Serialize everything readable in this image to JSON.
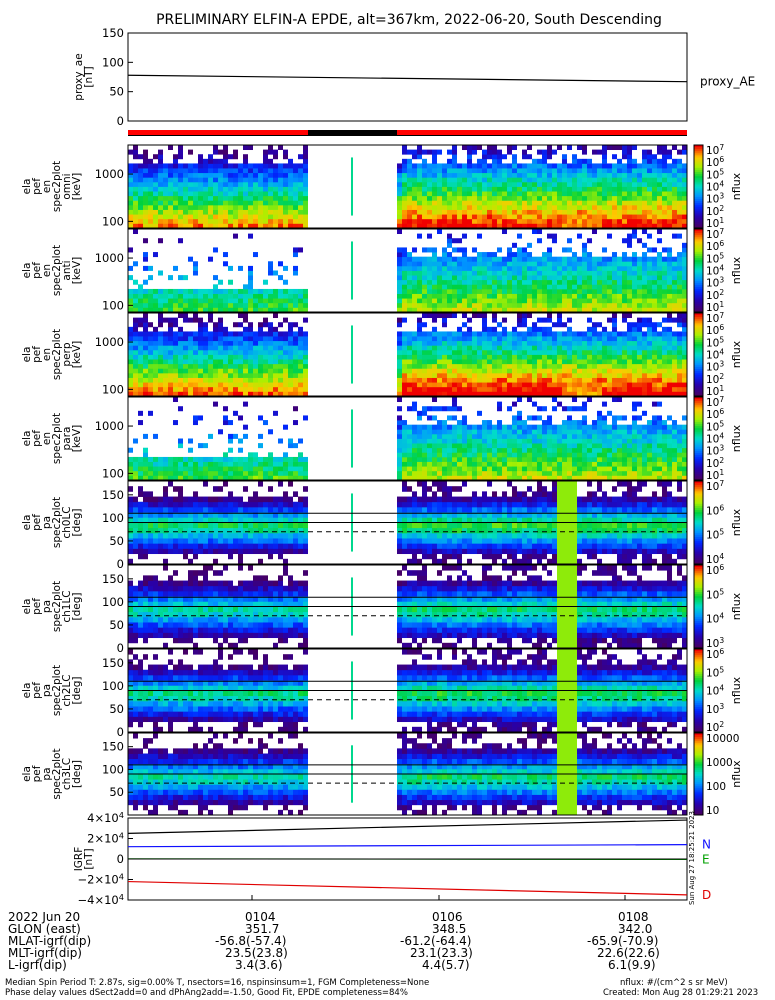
{
  "title": "PRELIMINARY ELFIN-A EPDE, alt=367km, 2022-06-20, South Descending",
  "colors": {
    "red": "#ff0000",
    "black": "#000000",
    "north": "#1010ff",
    "east": "#00a000",
    "down": "#e00000"
  },
  "chart_data": [
    {
      "type": "line",
      "name": "proxy_ae",
      "ylabel_lines": [
        "proxy_ae",
        "[nT]"
      ],
      "yticks": [
        "150",
        "100",
        "50",
        "0"
      ],
      "ylim": [
        0,
        150
      ],
      "series": [
        {
          "name": "proxy_AE",
          "x": [
            0,
            1
          ],
          "values": [
            78,
            67
          ]
        }
      ]
    },
    {
      "type": "heatmap",
      "name": "pef-en-omni",
      "ylabel_lines": [
        "ela",
        "pef",
        "en",
        "spec2plot",
        "omni",
        "[keV]"
      ],
      "yticks": [
        "1000",
        "100"
      ],
      "colorbar_ticks": [
        "10^7",
        "10^6",
        "10^5",
        "10^4",
        "10^3",
        "10^2",
        "10^1"
      ],
      "colorbar_label": "nflux"
    },
    {
      "type": "heatmap",
      "name": "pef-en-anti",
      "ylabel_lines": [
        "ela",
        "pef",
        "en",
        "spec2plot",
        "anti",
        "[keV]"
      ],
      "yticks": [
        "1000",
        "100"
      ],
      "colorbar_ticks": [
        "10^7",
        "10^6",
        "10^5",
        "10^4",
        "10^3",
        "10^2",
        "10^1"
      ],
      "colorbar_label": "nflux"
    },
    {
      "type": "heatmap",
      "name": "pef-en-perp",
      "ylabel_lines": [
        "ela",
        "pef",
        "en",
        "spec2plot",
        "perp",
        "[keV]"
      ],
      "yticks": [
        "1000",
        "100"
      ],
      "colorbar_ticks": [
        "10^7",
        "10^6",
        "10^5",
        "10^4",
        "10^3",
        "10^2",
        "10^1"
      ],
      "colorbar_label": "nflux"
    },
    {
      "type": "heatmap",
      "name": "pef-en-para",
      "ylabel_lines": [
        "ela",
        "pef",
        "en",
        "spec2plot",
        "para",
        "[keV]"
      ],
      "yticks": [
        "1000",
        "100"
      ],
      "colorbar_ticks": [
        "10^7",
        "10^6",
        "10^5",
        "10^4",
        "10^3",
        "10^2",
        "10^1"
      ],
      "colorbar_label": "nflux"
    },
    {
      "type": "heatmap",
      "name": "pef-pa-ch0LC",
      "ylabel_lines": [
        "ela",
        "pef",
        "pa",
        "spec2plot",
        "ch0LC",
        "[deg]"
      ],
      "yticks": [
        "150",
        "100",
        "50",
        "0"
      ],
      "colorbar_ticks": [
        "10^7",
        "10^6",
        "10^5",
        "10^4"
      ],
      "colorbar_label": "nflux"
    },
    {
      "type": "heatmap",
      "name": "pef-pa-ch1LC",
      "ylabel_lines": [
        "ela",
        "pef",
        "pa",
        "spec2plot",
        "ch1LC",
        "[deg]"
      ],
      "yticks": [
        "150",
        "100",
        "50",
        "0"
      ],
      "colorbar_ticks": [
        "10^6",
        "10^5",
        "10^4",
        "10^3"
      ],
      "colorbar_label": "nflux"
    },
    {
      "type": "heatmap",
      "name": "pef-pa-ch2LC",
      "ylabel_lines": [
        "ela",
        "pef",
        "pa",
        "spec2plot",
        "ch2LC",
        "[deg]"
      ],
      "yticks": [
        "150",
        "100",
        "50",
        "0"
      ],
      "colorbar_ticks": [
        "10^6",
        "10^5",
        "10^4",
        "10^3",
        "10^2"
      ],
      "colorbar_label": "nflux"
    },
    {
      "type": "heatmap",
      "name": "pef-pa-ch3LC",
      "ylabel_lines": [
        "ela",
        "pef",
        "pa",
        "spec2plot",
        "ch3LC",
        "[deg]"
      ],
      "yticks": [
        "150",
        "100",
        "50"
      ],
      "colorbar_ticks": [
        "10000",
        "1000",
        "100",
        "10"
      ],
      "colorbar_label": "nflux"
    },
    {
      "type": "line",
      "name": "igrf",
      "ylabel_lines": [
        "IGRF",
        "[nT]"
      ],
      "yticks": [
        "4×10^4",
        "2×10^4",
        "0",
        "−2×10^4",
        "−4×10^4"
      ],
      "ylim": [
        -40000,
        40000
      ],
      "series": [
        {
          "name": "N",
          "x": [
            0,
            1
          ],
          "values": [
            12000,
            14000
          ]
        },
        {
          "name": "E",
          "x": [
            0,
            1
          ],
          "values": [
            200,
            -400
          ]
        },
        {
          "name": "D",
          "x": [
            0,
            1
          ],
          "values": [
            -22000,
            -35000
          ]
        },
        {
          "name": "",
          "x": [
            0,
            1
          ],
          "values": [
            25000,
            38000
          ]
        }
      ]
    }
  ],
  "time_axis": {
    "date": "2022 Jun 20",
    "ticks": [
      "0104",
      "0106",
      "0108"
    ],
    "rows": [
      {
        "label": "GLON (east)",
        "values": [
          "351.7",
          "348.5",
          "342.0"
        ]
      },
      {
        "label": "MLAT-igrf(dip)",
        "values": [
          "-56.8(-57.4)",
          "-61.2(-64.4)",
          "-65.9(-70.9)"
        ]
      },
      {
        "label": "MLT-igrf(dip)",
        "values": [
          "23.5(23.8)",
          "23.1(23.3)",
          "22.6(22.6)"
        ]
      },
      {
        "label": "L-igrf(dip)",
        "values": [
          "3.4(3.6)",
          "4.4(5.7)",
          "6.1(9.9)"
        ]
      }
    ]
  },
  "created_side": "Sun Aug 27 18:25:21 2023",
  "footer": {
    "line1": "Median Spin Period T: 2.87s, sig=0.00% T, nsectors=16, nspinsinsum=1, FGM Completeness=None",
    "line2": "Phase delay values dSect2add=0 and dPhAng2add=-1.50, Good Fit, EPDE completeness=84%",
    "units": "nflux: #/(cm^2 s sr MeV)",
    "created": "Created: Mon Aug 28 01:29:21 2023"
  }
}
